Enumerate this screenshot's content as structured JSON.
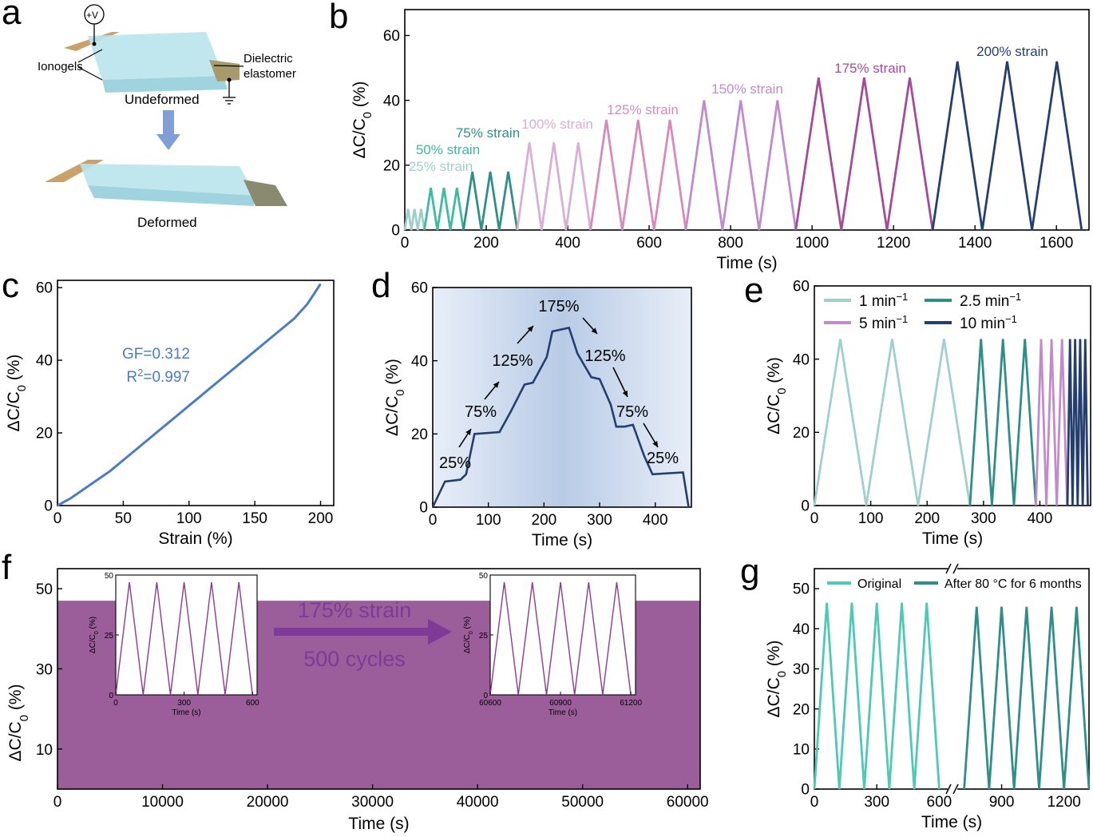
{
  "panel_letters": [
    "a",
    "b",
    "c",
    "d",
    "e",
    "f",
    "g"
  ],
  "schematic": {
    "voltage": "+V",
    "ionogels": "Ionogels",
    "dielectric_line1": "Dielectric",
    "dielectric_line2": "elastomer",
    "undeformed": "Undeformed",
    "deformed": "Deformed",
    "colors": {
      "electrode": "#c8a26a",
      "gel": "#b9e3ec",
      "arrow": "#7f9fd6"
    }
  },
  "chart_data": [
    {
      "id": "b",
      "type": "line",
      "xlabel": "Time (s)",
      "ylabel": "ΔC/C0 (%)",
      "xlim": [
        0,
        1680
      ],
      "ylim": [
        0,
        68
      ],
      "xticks": [
        0,
        200,
        400,
        600,
        800,
        1000,
        1200,
        1400,
        1600
      ],
      "yticks": [
        0,
        20,
        40,
        60
      ],
      "series": [
        {
          "name": "25% strain",
          "color": "#9fcfca",
          "start": 0,
          "period": 16,
          "peak": 6.5,
          "cycles": 3
        },
        {
          "name": "50% strain",
          "color": "#3dbba0",
          "start": 48,
          "period": 32,
          "peak": 13,
          "cycles": 3
        },
        {
          "name": "75% strain",
          "color": "#2f8f88",
          "start": 144,
          "period": 44,
          "peak": 18,
          "cycles": 3
        },
        {
          "name": "100% strain",
          "color": "#d9afd2",
          "start": 276,
          "period": 60,
          "peak": 27,
          "cycles": 3
        },
        {
          "name": "125% strain",
          "color": "#d78bb8",
          "start": 456,
          "period": 78,
          "peak": 34,
          "cycles": 3
        },
        {
          "name": "150% strain",
          "color": "#c08acc",
          "start": 690,
          "period": 90,
          "peak": 40,
          "cycles": 3
        },
        {
          "name": "175% strain",
          "color": "#a44a9a",
          "start": 960,
          "period": 112,
          "peak": 47,
          "cycles": 3
        },
        {
          "name": "200% strain",
          "color": "#243e6e",
          "start": 1296,
          "period": 122,
          "peak": 52,
          "cycles": 3
        }
      ]
    },
    {
      "id": "c",
      "type": "line",
      "xlabel": "Strain (%)",
      "ylabel": "ΔC/C0 (%)",
      "xlim": [
        0,
        210
      ],
      "ylim": [
        0,
        62
      ],
      "xticks": [
        0,
        50,
        100,
        150,
        200
      ],
      "yticks": [
        0,
        20,
        40,
        60
      ],
      "color": "#4a7bc4",
      "x": [
        0,
        10,
        20,
        30,
        40,
        50,
        60,
        70,
        80,
        90,
        100,
        110,
        120,
        130,
        140,
        150,
        160,
        170,
        180,
        190,
        200
      ],
      "y": [
        0,
        2,
        4.5,
        7,
        9.5,
        12.5,
        15.5,
        18.5,
        21.5,
        24.5,
        27.5,
        30.5,
        33.5,
        36.5,
        39.5,
        42.5,
        45.5,
        48.5,
        51.5,
        55.5,
        61
      ],
      "annotations": [
        "GF=0.312",
        "R2=0.997"
      ]
    },
    {
      "id": "d",
      "type": "line",
      "xlabel": "Time (s)",
      "ylabel": "ΔC/C0 (%)",
      "xlim": [
        0,
        465
      ],
      "ylim": [
        0,
        60
      ],
      "xticks": [
        0,
        100,
        200,
        300,
        400
      ],
      "yticks": [
        0,
        20,
        40,
        60
      ],
      "color": "#243e6e",
      "x": [
        0,
        22,
        50,
        60,
        75,
        120,
        140,
        165,
        180,
        205,
        215,
        245,
        260,
        285,
        300,
        320,
        330,
        345,
        360,
        380,
        395,
        450,
        460
      ],
      "y": [
        0,
        7,
        7.5,
        9,
        20,
        20.5,
        26,
        33.5,
        34,
        41,
        48,
        49,
        42,
        35.5,
        35,
        28,
        22,
        22,
        22.5,
        14,
        9,
        9.5,
        0
      ],
      "labels": [
        "25%",
        "75%",
        "125%",
        "175%",
        "125%",
        "75%",
        "25%"
      ]
    },
    {
      "id": "e",
      "type": "line",
      "xlabel": "Time (s)",
      "ylabel": "ΔC/C0 (%)",
      "xlim": [
        0,
        490
      ],
      "ylim": [
        0,
        60
      ],
      "xticks": [
        0,
        100,
        200,
        300,
        400
      ],
      "yticks": [
        0,
        20,
        40,
        60
      ],
      "series": [
        {
          "name": "1 min",
          "color": "#9fd0cb",
          "start": 0,
          "period": 92,
          "peak": 45.5,
          "cycles": 3
        },
        {
          "name": "2.5 min",
          "color": "#2f8f88",
          "start": 276,
          "period": 39,
          "peak": 45.5,
          "cycles": 3
        },
        {
          "name": "5 min",
          "color": "#c08acc",
          "start": 393,
          "period": 18.5,
          "peak": 45.5,
          "cycles": 3
        },
        {
          "name": "10 min",
          "color": "#243e6e",
          "start": 449,
          "period": 9,
          "peak": 45.5,
          "cycles": 4
        }
      ],
      "legend_unit": "−1"
    },
    {
      "id": "f",
      "type": "area",
      "xlabel": "Time (s)",
      "ylabel": "ΔC/C0 (%)",
      "xlim": [
        0,
        61200
      ],
      "ylim": [
        0,
        55
      ],
      "xticks": [
        0,
        10000,
        20000,
        30000,
        40000,
        50000,
        60000
      ],
      "yticks": [
        10,
        30,
        50
      ],
      "color": "#9b5e9b",
      "fill_top": 47,
      "strain_label": "175% strain",
      "cycles_label": "500 cycles",
      "inset1": {
        "xlabel": "Time (s)",
        "ylabel": "ΔC/C0 (%)",
        "xlim": [
          0,
          620
        ],
        "ylim": [
          0,
          50
        ],
        "xticks": [
          0,
          300,
          600
        ],
        "yticks": [
          0,
          25,
          50
        ],
        "period": 120,
        "peak": 47,
        "cycles": 5,
        "start": 0
      },
      "inset2": {
        "xlabel": "Time (s)",
        "ylabel": "ΔC/C0 (%)",
        "xlim": [
          60600,
          61220
        ],
        "ylim": [
          0,
          50
        ],
        "xticks": [
          60600,
          60900,
          61200
        ],
        "yticks": [
          0,
          25,
          50
        ],
        "period": 120,
        "peak": 47,
        "cycles": 5,
        "start": 60600
      },
      "line_color": "#8a3a8f"
    },
    {
      "id": "g",
      "type": "line",
      "xlabel": "Time (s)",
      "ylabel": "ΔC/C0 (%)",
      "xlim": [
        0,
        1320
      ],
      "ylim": [
        0,
        55
      ],
      "xticks": [
        0,
        300,
        600,
        900,
        1200
      ],
      "yticks": [
        0,
        10,
        20,
        30,
        40,
        50
      ],
      "series": [
        {
          "name": "Original",
          "color": "#4ec9b3",
          "start": 0,
          "period": 120,
          "peak": 46.5,
          "cycles": 5
        },
        {
          "name": "After 80 °C for 6 months",
          "color": "#2f8f88",
          "start": 720,
          "period": 120,
          "peak": 45.5,
          "cycles": 5
        }
      ]
    }
  ]
}
